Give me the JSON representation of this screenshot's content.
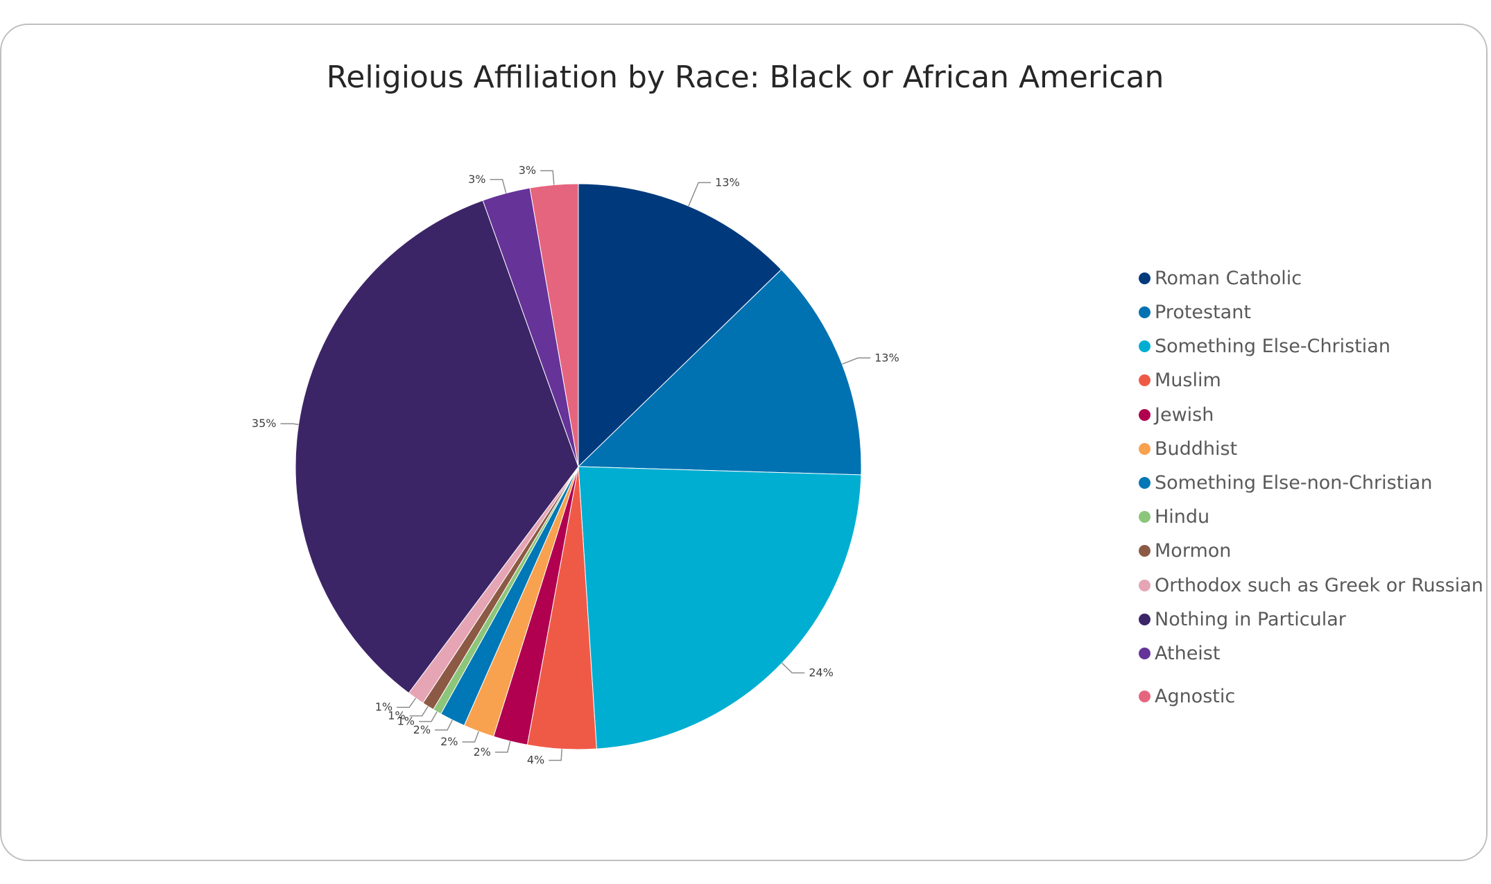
{
  "chart_data": {
    "type": "pie",
    "title": "Religious Affiliation by Race: Black or African American",
    "start_angle_deg": 0,
    "direction": "clockwise",
    "legend_position": "right",
    "slices": [
      {
        "name": "Roman Catholic",
        "value": 13.0,
        "label": "13%",
        "color": "#003a7d"
      },
      {
        "name": "Protestant",
        "value": 13.0,
        "label": "13%",
        "color": "#0072b2"
      },
      {
        "name": "Something Else-Christian",
        "value": 24.0,
        "label": "24%",
        "color": "#00aed1"
      },
      {
        "name": "Muslim",
        "value": 4.0,
        "label": "4%",
        "color": "#ef5a47"
      },
      {
        "name": "Jewish",
        "value": 2.0,
        "label": "2%",
        "color": "#b0004f"
      },
      {
        "name": "Buddhist",
        "value": 1.8,
        "label": "2%",
        "color": "#f8a14f"
      },
      {
        "name": "Something Else-non-Christian",
        "value": 1.5,
        "label": "2%",
        "color": "#0077b6"
      },
      {
        "name": "Hindu",
        "value": 0.5,
        "label": "1%",
        "color": "#8cc67a"
      },
      {
        "name": "Mormon",
        "value": 0.7,
        "label": "1%",
        "color": "#8c5a44"
      },
      {
        "name": "Orthodox such as Greek or Russian",
        "value": 1.0,
        "label": "1%",
        "color": "#e5a5b5"
      },
      {
        "name": "Nothing in Particular",
        "value": 35.0,
        "label": "35%",
        "color": "#3c2566"
      },
      {
        "name": "Atheist",
        "value": 2.8,
        "label": "3%",
        "color": "#663399"
      },
      {
        "name": "Agnostic",
        "value": 2.8,
        "label": "3%",
        "color": "#e5657e"
      }
    ]
  }
}
